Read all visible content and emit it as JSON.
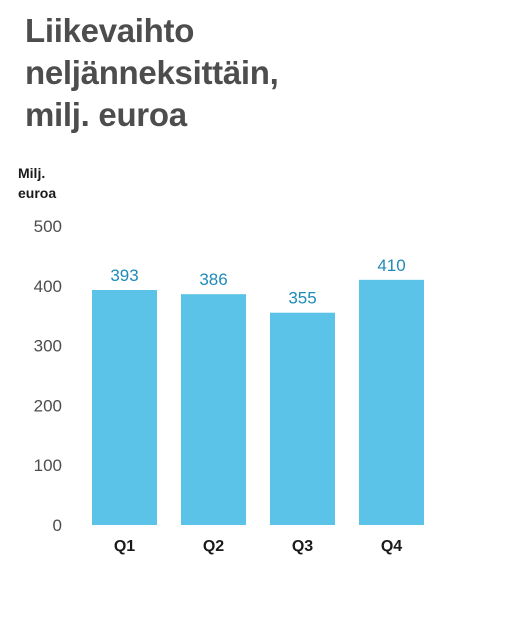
{
  "chart_data": {
    "type": "bar",
    "title_lines": [
      "Liikevaihto",
      "neljänneksittäin,",
      "milj. euroa"
    ],
    "ylabel_lines": [
      "Milj.",
      "euroa"
    ],
    "categories": [
      "Q1",
      "Q2",
      "Q3",
      "Q4"
    ],
    "values": [
      393,
      386,
      355,
      410
    ],
    "data_labels": [
      "393",
      "386",
      "355",
      "410"
    ],
    "yticks": [
      0,
      100,
      200,
      300,
      400,
      500
    ],
    "ylim": [
      0,
      500
    ],
    "grid": false,
    "legend": "none",
    "colors": {
      "bar": "#5bc2e8",
      "data_label": "#1f8ab8",
      "title": "#4d4d4d"
    }
  }
}
